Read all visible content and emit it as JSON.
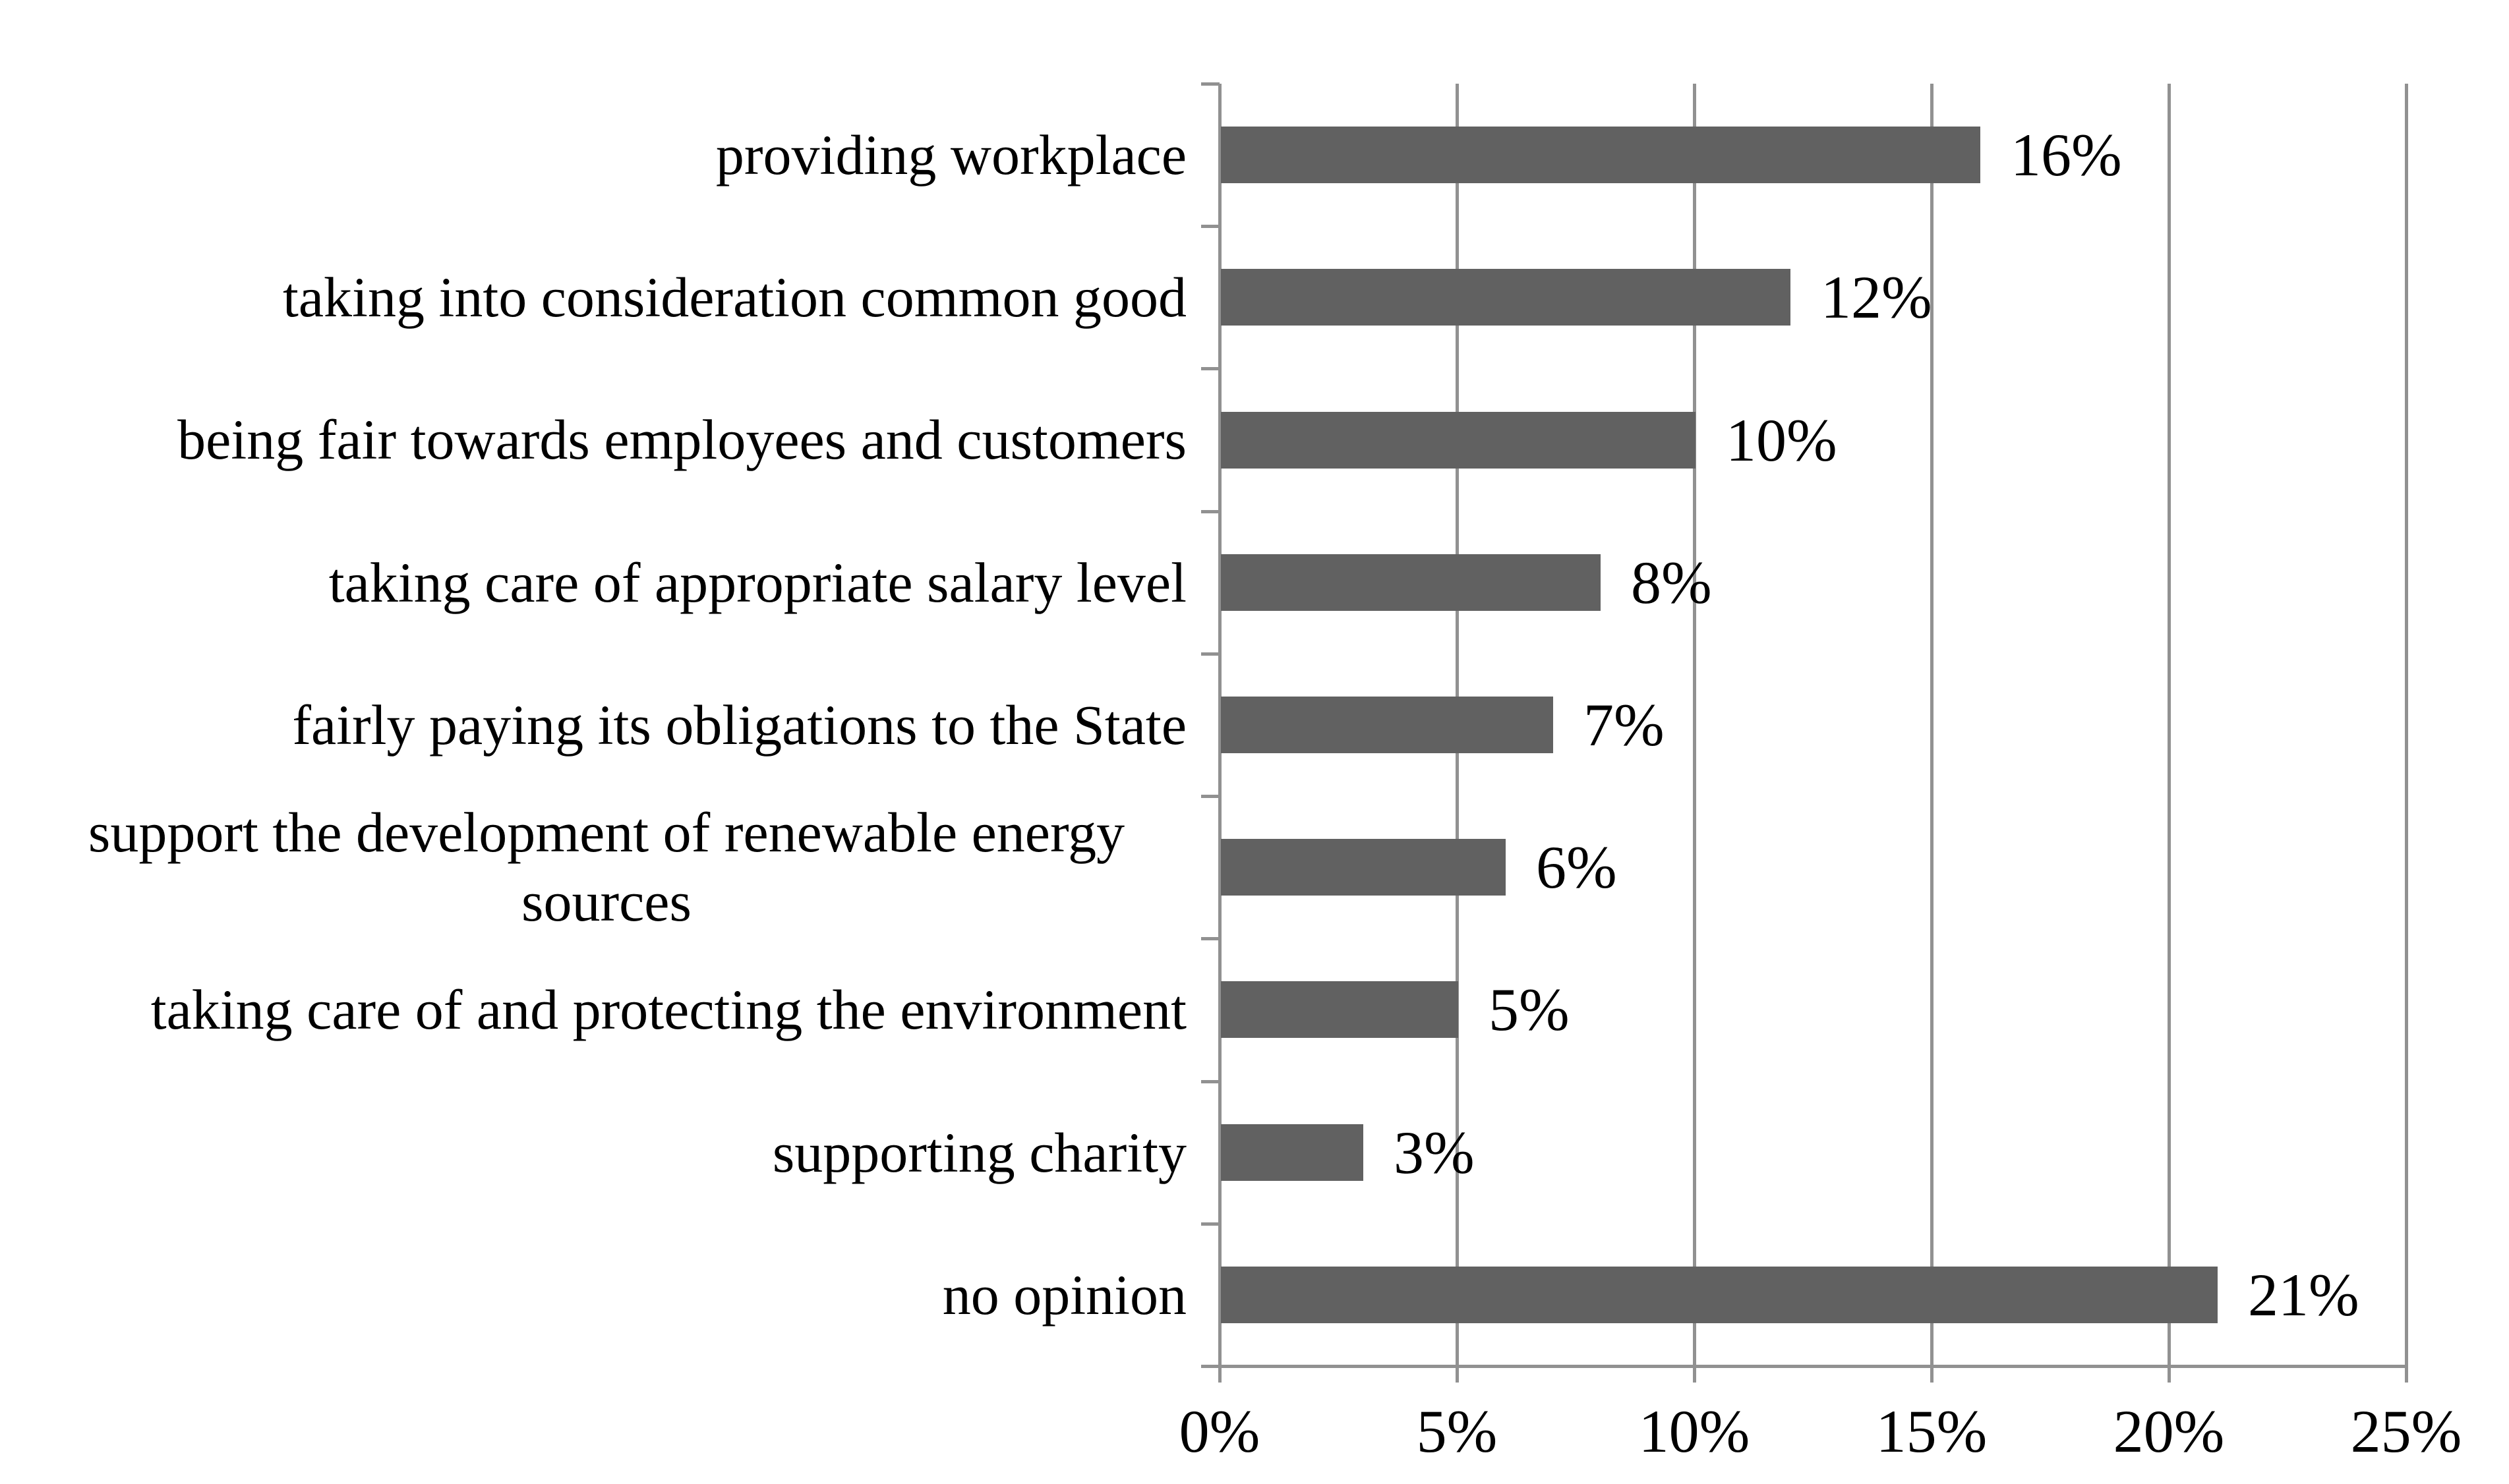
{
  "chart_data": {
    "type": "bar",
    "orientation": "horizontal",
    "title": "",
    "xlabel": "",
    "ylabel": "",
    "categories": [
      "providing workplace",
      "taking into consideration common good",
      "being fair towards employees and customers",
      "taking care of appropriate salary level",
      "fairly paying its obligations to the State",
      "support the development of renewable energy sources",
      "taking care of and protecting the environment",
      "supporting charity",
      "no opinion"
    ],
    "values": [
      16,
      12,
      10,
      8,
      7,
      6,
      5,
      3,
      21
    ],
    "value_labels": [
      "16%",
      "12%",
      "10%",
      "8%",
      "7%",
      "6%",
      "5%",
      "3%",
      "21%"
    ],
    "x_ticks": [
      "0%",
      "5%",
      "10%",
      "15%",
      "20%",
      "25%"
    ],
    "x_tick_values": [
      0,
      5,
      10,
      15,
      20,
      25
    ],
    "xlim": [
      0,
      25
    ],
    "grid": "vertical-major",
    "legend_position": "none",
    "colors": {
      "bar_fill": "#616161",
      "axis_and_grid": "#919191",
      "text": "#000000",
      "background": "#ffffff"
    }
  }
}
